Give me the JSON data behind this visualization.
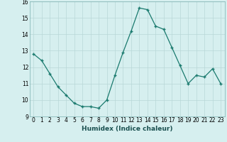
{
  "x": [
    0,
    1,
    2,
    3,
    4,
    5,
    6,
    7,
    8,
    9,
    10,
    11,
    12,
    13,
    14,
    15,
    16,
    17,
    18,
    19,
    20,
    21,
    22,
    23
  ],
  "y": [
    12.8,
    12.4,
    11.6,
    10.8,
    10.3,
    9.8,
    9.6,
    9.6,
    9.5,
    10.0,
    11.5,
    12.9,
    14.2,
    15.6,
    15.5,
    14.5,
    14.3,
    13.2,
    12.1,
    11.0,
    11.5,
    11.4,
    11.9,
    11.0
  ],
  "xlabel": "Humidex (Indice chaleur)",
  "ylim": [
    9,
    16
  ],
  "xlim": [
    -0.5,
    23.5
  ],
  "yticks": [
    9,
    10,
    11,
    12,
    13,
    14,
    15,
    16
  ],
  "xticks": [
    0,
    1,
    2,
    3,
    4,
    5,
    6,
    7,
    8,
    9,
    10,
    11,
    12,
    13,
    14,
    15,
    16,
    17,
    18,
    19,
    20,
    21,
    22,
    23
  ],
  "line_color": "#1a7a6e",
  "marker": "+",
  "marker_size": 3.5,
  "bg_color": "#d6efef",
  "grid_color": "#b8d8d8",
  "font_size_label": 6.5,
  "font_size_tick": 5.5,
  "line_width": 0.9
}
